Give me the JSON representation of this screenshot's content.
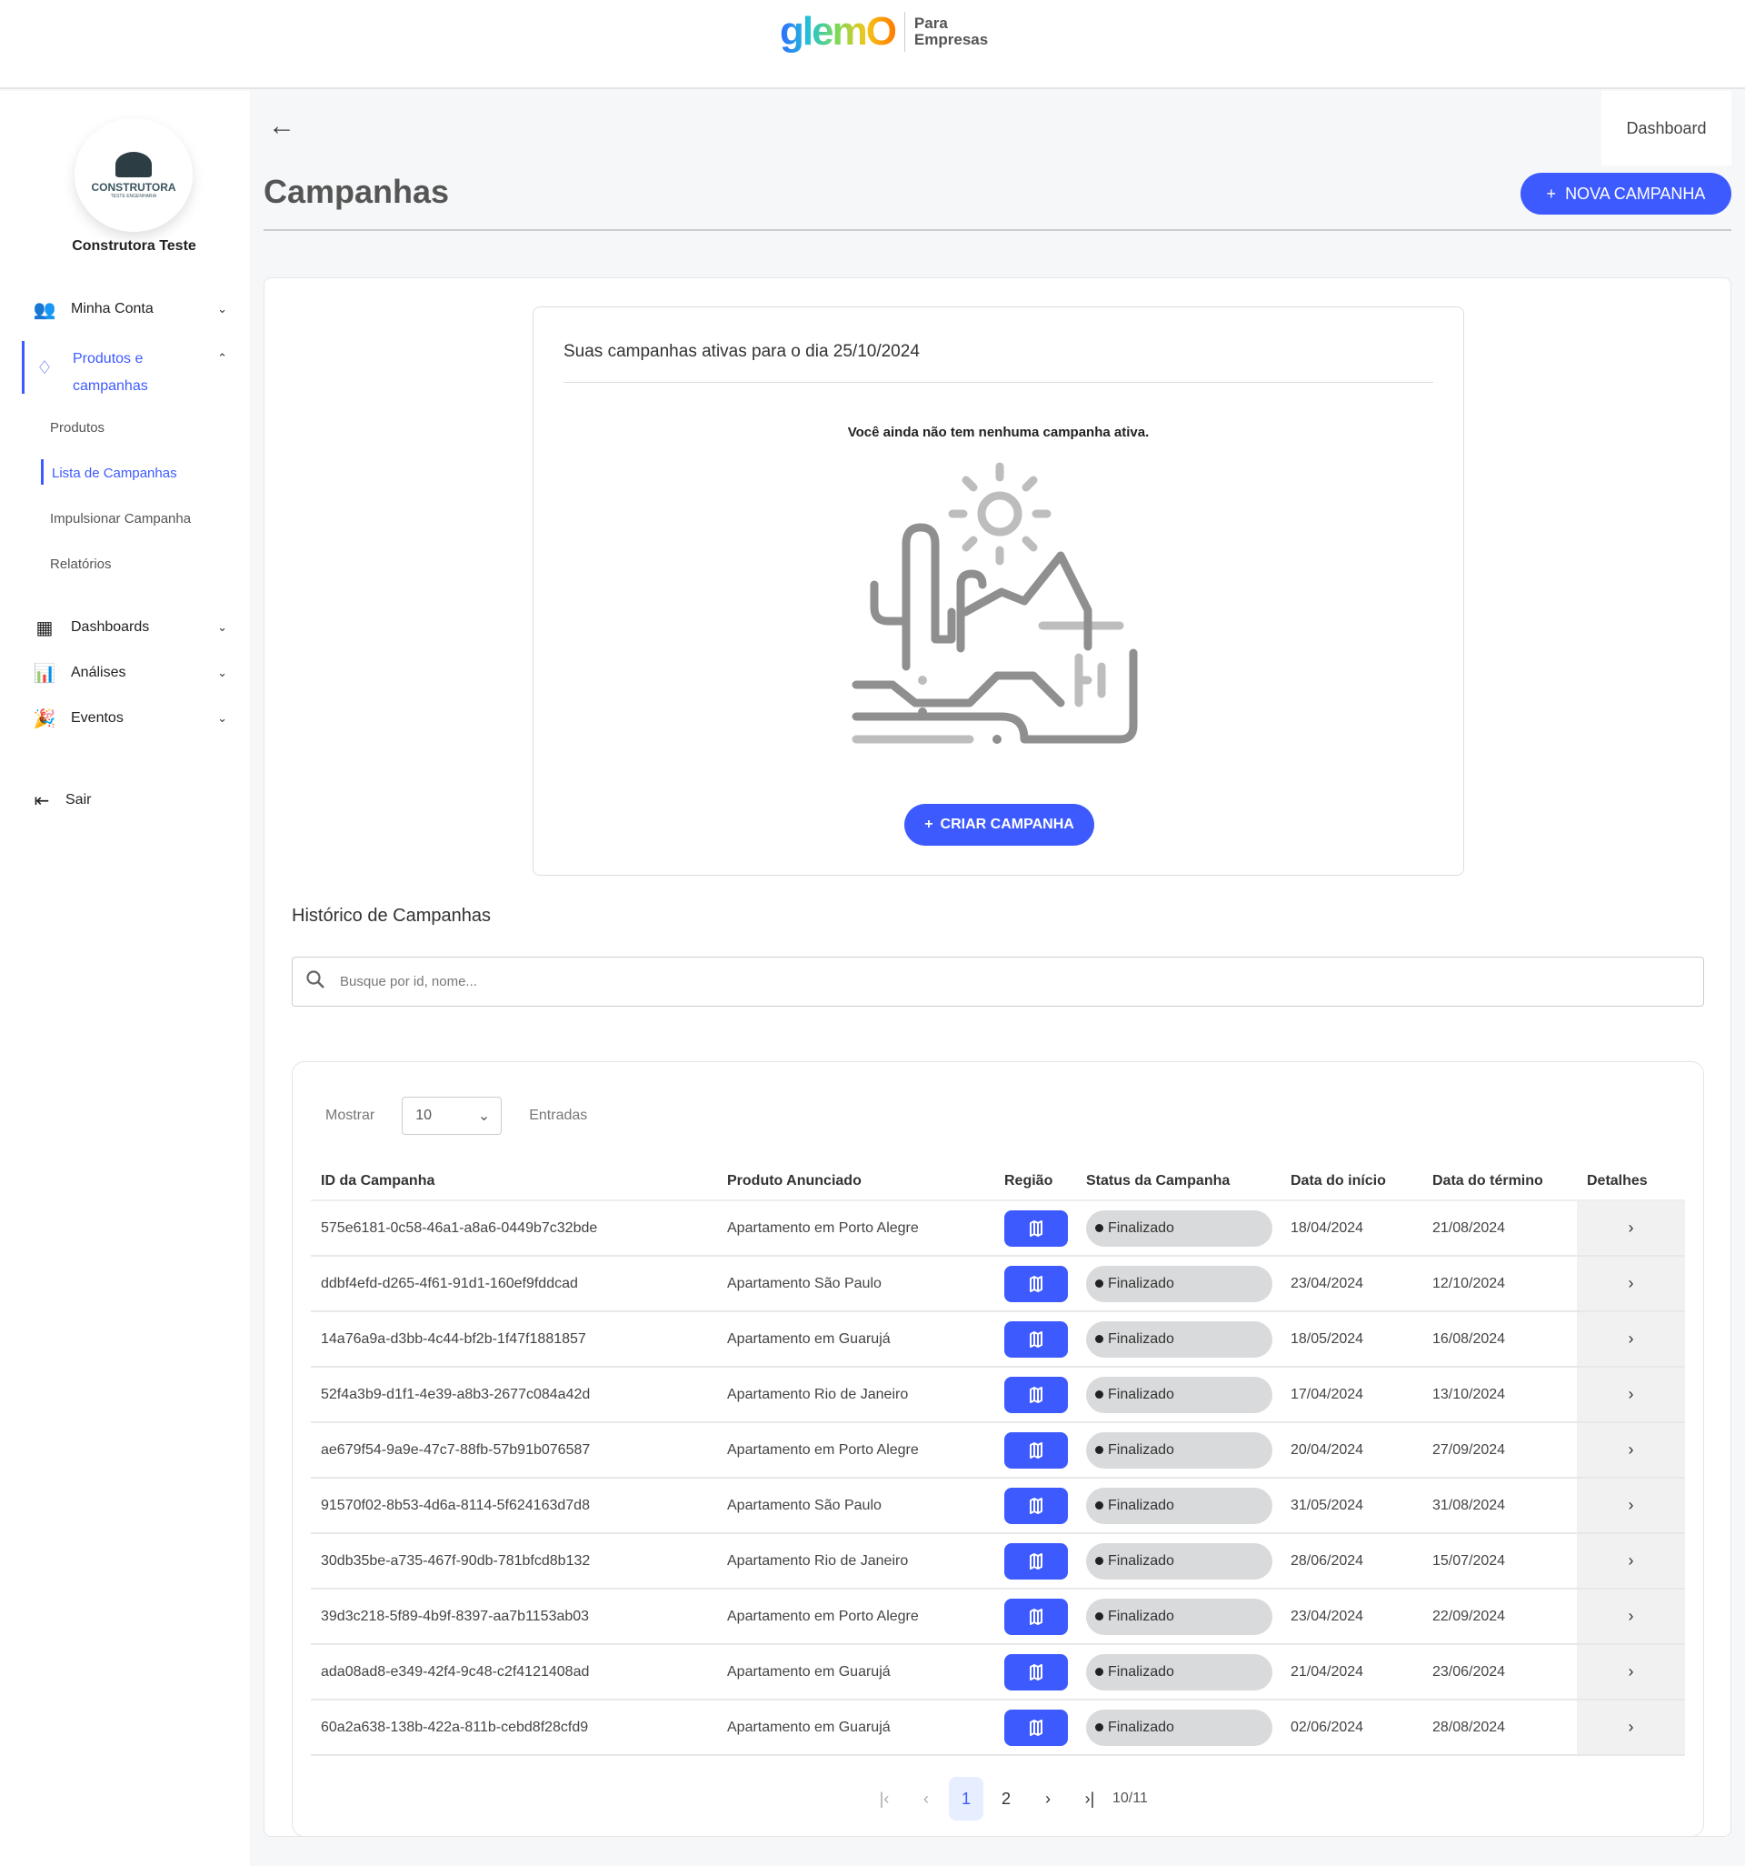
{
  "header": {
    "logo": "glemO",
    "logo_sub": [
      "Para",
      "Empresas"
    ]
  },
  "sidebar": {
    "company": "Construtora Teste",
    "avatar_text": [
      "CONSTRUTORA",
      "TESTE ENGENHARIA"
    ],
    "items": [
      {
        "label": "Minha Conta",
        "icon": "users-icon"
      },
      {
        "label": "Produtos e campanhas",
        "icon": "tag-heart-icon"
      },
      {
        "label": "Dashboards",
        "icon": "dashboard-grid-icon"
      },
      {
        "label": "Análises",
        "icon": "bar-chart-icon"
      },
      {
        "label": "Eventos",
        "icon": "party-popper-icon"
      }
    ],
    "subitems": [
      "Produtos",
      "Lista de Campanhas",
      "Impulsionar Campanha",
      "Relatórios"
    ],
    "logout": "Sair"
  },
  "page": {
    "title": "Campanhas",
    "dashboard_tab": "Dashboard",
    "new_button": "NOVA CAMPANHA",
    "accent": "#3d5afe"
  },
  "active": {
    "heading": "Suas campanhas ativas para o dia 25/10/2024",
    "empty": "Você ainda não tem nenhuma campanha ativa.",
    "create_button": "CRIAR CAMPANHA"
  },
  "history": {
    "title": "Histórico de Campanhas",
    "search_placeholder": "Busque por id, nome...",
    "show_label": "Mostrar",
    "show_value": "10",
    "entries_label": "Entradas",
    "columns": [
      "ID da Campanha",
      "Produto Anunciado",
      "Região",
      "Status da Campanha",
      "Data do início",
      "Data do término",
      "Detalhes"
    ],
    "rows": [
      {
        "id": "575e6181-0c58-46a1-a8a6-0449b7c32bde",
        "product": "Apartamento em Porto Alegre",
        "status": "Finalizado",
        "start": "18/04/2024",
        "end": "21/08/2024"
      },
      {
        "id": "ddbf4efd-d265-4f61-91d1-160ef9fddcad",
        "product": "Apartamento São Paulo",
        "status": "Finalizado",
        "start": "23/04/2024",
        "end": "12/10/2024"
      },
      {
        "id": "14a76a9a-d3bb-4c44-bf2b-1f47f1881857",
        "product": "Apartamento em Guarujá",
        "status": "Finalizado",
        "start": "18/05/2024",
        "end": "16/08/2024"
      },
      {
        "id": "52f4a3b9-d1f1-4e39-a8b3-2677c084a42d",
        "product": "Apartamento Rio de Janeiro",
        "status": "Finalizado",
        "start": "17/04/2024",
        "end": "13/10/2024"
      },
      {
        "id": "ae679f54-9a9e-47c7-88fb-57b91b076587",
        "product": "Apartamento em Porto Alegre",
        "status": "Finalizado",
        "start": "20/04/2024",
        "end": "27/09/2024"
      },
      {
        "id": "91570f02-8b53-4d6a-8114-5f624163d7d8",
        "product": "Apartamento São Paulo",
        "status": "Finalizado",
        "start": "31/05/2024",
        "end": "31/08/2024"
      },
      {
        "id": "30db35be-a735-467f-90db-781bfcd8b132",
        "product": "Apartamento Rio de Janeiro",
        "status": "Finalizado",
        "start": "28/06/2024",
        "end": "15/07/2024"
      },
      {
        "id": "39d3c218-5f89-4b9f-8397-aa7b1153ab03",
        "product": "Apartamento em Porto Alegre",
        "status": "Finalizado",
        "start": "23/04/2024",
        "end": "22/09/2024"
      },
      {
        "id": "ada08ad8-e349-42f4-9c48-c2f4121408ad",
        "product": "Apartamento em Guarujá",
        "status": "Finalizado",
        "start": "21/04/2024",
        "end": "23/06/2024"
      },
      {
        "id": "60a2a638-138b-422a-811b-cebd8f28cfd9",
        "product": "Apartamento em Guarujá",
        "status": "Finalizado",
        "start": "02/06/2024",
        "end": "28/08/2024"
      }
    ],
    "pagination": {
      "pages": [
        "1",
        "2"
      ],
      "current": "1",
      "count": "10/11"
    }
  }
}
